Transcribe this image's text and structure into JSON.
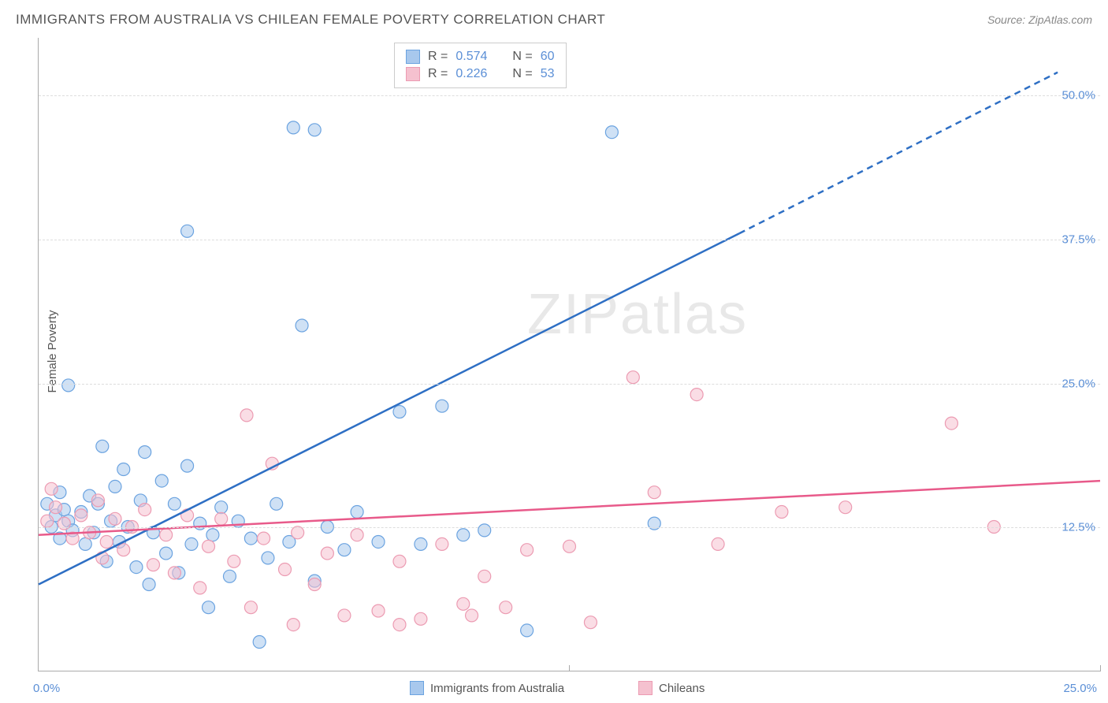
{
  "title": "IMMIGRANTS FROM AUSTRALIA VS CHILEAN FEMALE POVERTY CORRELATION CHART",
  "source": "Source: ZipAtlas.com",
  "y_axis_label": "Female Poverty",
  "watermark": "ZIPatlas",
  "chart": {
    "type": "scatter",
    "xlim": [
      0,
      25
    ],
    "ylim": [
      0,
      55
    ],
    "x_ticks": [
      0,
      12.5,
      25
    ],
    "x_tick_labels": [
      "0.0%",
      "",
      "25.0%"
    ],
    "y_ticks": [
      12.5,
      25,
      37.5,
      50
    ],
    "y_tick_labels": [
      "12.5%",
      "25.0%",
      "37.5%",
      "50.0%"
    ],
    "grid_color": "#dddddd",
    "axis_color": "#aaaaaa",
    "background_color": "#ffffff",
    "point_radius": 8,
    "point_opacity": 0.55,
    "line_width": 2.5,
    "series": [
      {
        "name": "Immigrants from Australia",
        "color_fill": "#a8c8ed",
        "color_stroke": "#6ba3e0",
        "line_color": "#2e6fc4",
        "R": "0.574",
        "N": "60",
        "trend": {
          "x1": 0,
          "y1": 7.5,
          "x2": 16.5,
          "y2": 38,
          "x2_ext": 24,
          "y2_ext": 52
        },
        "points": [
          [
            0.2,
            14.5
          ],
          [
            0.3,
            12.5
          ],
          [
            0.4,
            13.5
          ],
          [
            0.5,
            11.5
          ],
          [
            0.6,
            14
          ],
          [
            0.7,
            13
          ],
          [
            0.8,
            12.2
          ],
          [
            0.5,
            15.5
          ],
          [
            0.7,
            24.8
          ],
          [
            1.0,
            13.8
          ],
          [
            1.1,
            11
          ],
          [
            1.2,
            15.2
          ],
          [
            1.3,
            12
          ],
          [
            1.4,
            14.5
          ],
          [
            1.5,
            19.5
          ],
          [
            1.6,
            9.5
          ],
          [
            1.7,
            13
          ],
          [
            1.8,
            16
          ],
          [
            1.9,
            11.2
          ],
          [
            2.0,
            17.5
          ],
          [
            2.1,
            12.5
          ],
          [
            2.3,
            9.0
          ],
          [
            2.4,
            14.8
          ],
          [
            2.5,
            19
          ],
          [
            2.6,
            7.5
          ],
          [
            2.7,
            12
          ],
          [
            2.9,
            16.5
          ],
          [
            3.0,
            10.2
          ],
          [
            3.2,
            14.5
          ],
          [
            3.3,
            8.5
          ],
          [
            3.5,
            17.8
          ],
          [
            3.6,
            11
          ],
          [
            3.8,
            12.8
          ],
          [
            4.0,
            5.5
          ],
          [
            4.1,
            11.8
          ],
          [
            4.3,
            14.2
          ],
          [
            4.5,
            8.2
          ],
          [
            4.7,
            13
          ],
          [
            3.5,
            38.2
          ],
          [
            5.0,
            11.5
          ],
          [
            5.2,
            2.5
          ],
          [
            5.4,
            9.8
          ],
          [
            5.6,
            14.5
          ],
          [
            5.9,
            11.2
          ],
          [
            6.2,
            30
          ],
          [
            6.5,
            7.8
          ],
          [
            6.8,
            12.5
          ],
          [
            6.0,
            47.2
          ],
          [
            7.2,
            10.5
          ],
          [
            7.5,
            13.8
          ],
          [
            8.0,
            11.2
          ],
          [
            8.5,
            22.5
          ],
          [
            9.0,
            11
          ],
          [
            9.5,
            23
          ],
          [
            10.0,
            11.8
          ],
          [
            11.5,
            3.5
          ],
          [
            6.5,
            47
          ],
          [
            13.5,
            46.8
          ],
          [
            14.5,
            12.8
          ],
          [
            10.5,
            12.2
          ]
        ]
      },
      {
        "name": "Chileans",
        "color_fill": "#f5c1cf",
        "color_stroke": "#ec9bb2",
        "line_color": "#e85a8a",
        "R": "0.226",
        "N": "53",
        "trend": {
          "x1": 0,
          "y1": 11.8,
          "x2": 25,
          "y2": 16.5
        },
        "points": [
          [
            0.2,
            13
          ],
          [
            0.4,
            14.2
          ],
          [
            0.6,
            12.8
          ],
          [
            0.8,
            11.5
          ],
          [
            1.0,
            13.5
          ],
          [
            1.2,
            12
          ],
          [
            1.4,
            14.8
          ],
          [
            1.6,
            11.2
          ],
          [
            1.8,
            13.2
          ],
          [
            2.0,
            10.5
          ],
          [
            2.2,
            12.5
          ],
          [
            2.5,
            14
          ],
          [
            2.7,
            9.2
          ],
          [
            3.0,
            11.8
          ],
          [
            3.2,
            8.5
          ],
          [
            3.5,
            13.5
          ],
          [
            3.8,
            7.2
          ],
          [
            4.0,
            10.8
          ],
          [
            4.3,
            13.2
          ],
          [
            4.6,
            9.5
          ],
          [
            4.9,
            22.2
          ],
          [
            5.0,
            5.5
          ],
          [
            5.3,
            11.5
          ],
          [
            5.5,
            18
          ],
          [
            5.8,
            8.8
          ],
          [
            6.1,
            12
          ],
          [
            6.5,
            7.5
          ],
          [
            6.8,
            10.2
          ],
          [
            7.2,
            4.8
          ],
          [
            7.5,
            11.8
          ],
          [
            8.0,
            5.2
          ],
          [
            8.5,
            9.5
          ],
          [
            9.0,
            4.5
          ],
          [
            9.5,
            11
          ],
          [
            10.0,
            5.8
          ],
          [
            10.5,
            8.2
          ],
          [
            11.0,
            5.5
          ],
          [
            11.5,
            10.5
          ],
          [
            12.5,
            10.8
          ],
          [
            13.0,
            4.2
          ],
          [
            14.0,
            25.5
          ],
          [
            14.5,
            15.5
          ],
          [
            15.5,
            24
          ],
          [
            16.0,
            11
          ],
          [
            17.5,
            13.8
          ],
          [
            19.0,
            14.2
          ],
          [
            21.5,
            21.5
          ],
          [
            22.5,
            12.5
          ],
          [
            0.3,
            15.8
          ],
          [
            1.5,
            9.8
          ],
          [
            6.0,
            4.0
          ],
          [
            8.5,
            4.0
          ],
          [
            10.2,
            4.8
          ]
        ]
      }
    ]
  },
  "stats_box": {
    "rows": [
      {
        "swatch_fill": "#a8c8ed",
        "swatch_stroke": "#6ba3e0",
        "r_label": "R =",
        "r_val": "0.574",
        "n_label": "N =",
        "n_val": "60"
      },
      {
        "swatch_fill": "#f5c1cf",
        "swatch_stroke": "#ec9bb2",
        "r_label": "R =",
        "r_val": "0.226",
        "n_label": "N =",
        "n_val": "53"
      }
    ]
  },
  "bottom_legend": [
    {
      "swatch_fill": "#a8c8ed",
      "swatch_stroke": "#6ba3e0",
      "label": "Immigrants from Australia"
    },
    {
      "swatch_fill": "#f5c1cf",
      "swatch_stroke": "#ec9bb2",
      "label": "Chileans"
    }
  ]
}
